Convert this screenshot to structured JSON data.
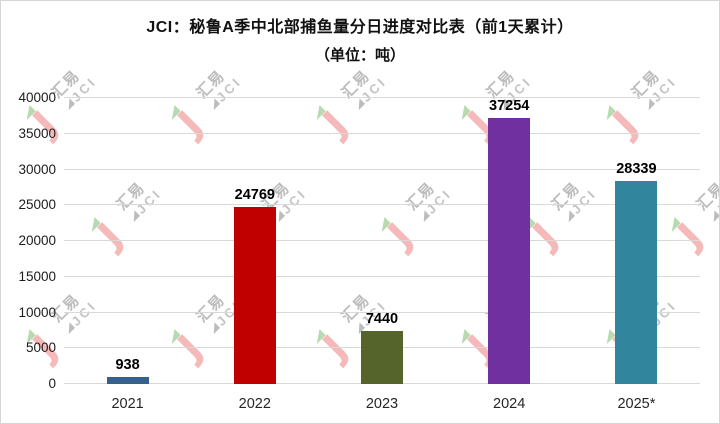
{
  "watermark": {
    "cn": "汇易",
    "en": "JCI",
    "brand_pink": "#f6b9b9",
    "brand_green": "#b6dbae",
    "text_gray": "#bcbcbc"
  },
  "chart_data": {
    "type": "bar",
    "title": "JCI：秘鲁A季中北部捕鱼量分日进度对比表（前1天累计）",
    "subtitle": "（单位：吨）",
    "categories": [
      "2021",
      "2022",
      "2023",
      "2024",
      "2025*"
    ],
    "values": [
      938,
      24769,
      7440,
      37254,
      28339
    ],
    "data_labels": [
      "938",
      "24769",
      "7440",
      "37254",
      "28339"
    ],
    "bar_colors": [
      "#36608e",
      "#c00000",
      "#55642b",
      "#7030a0",
      "#31859c"
    ],
    "ylim": [
      0,
      40000
    ],
    "yticks": [
      0,
      5000,
      10000,
      15000,
      20000,
      25000,
      30000,
      35000,
      40000
    ],
    "xlabel": "",
    "ylabel": "",
    "grid": true,
    "legend": false,
    "gridline_color": "#d9d9d9"
  }
}
